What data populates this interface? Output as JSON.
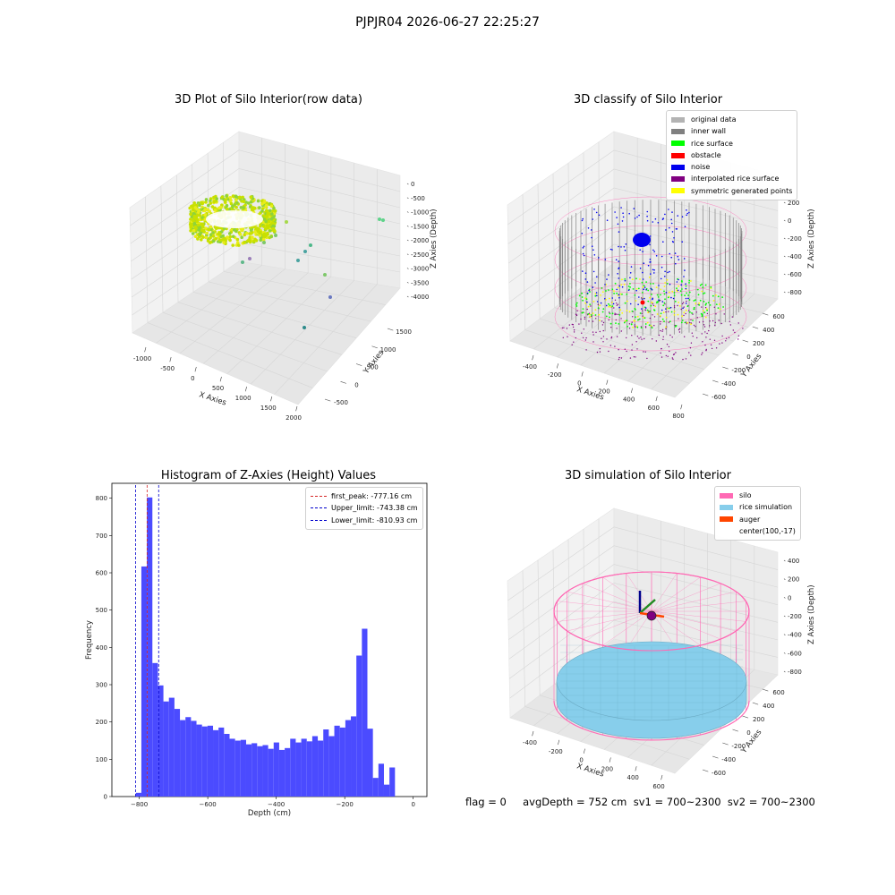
{
  "page_title": "PJPJR04 2026-06-27 22:25:27",
  "status_line": "flag = 0     avgDepth = 752 cm  sv1 = 700~2300  sv2 = 700~2300",
  "colors": {
    "hist_bar": "#4b4bff",
    "first_peak": "#d62728",
    "limits": "#0000cc",
    "original": "#b3b3b3",
    "inner_wall": "#808080",
    "rice_surface": "#00ff00",
    "obstacle": "#ff0000",
    "noise": "#0000ee",
    "interp": "#800080",
    "symmetric": "#ffff00",
    "silo": "#ff69b4",
    "rice_sim": "#87ceeb",
    "auger": "#ff4500"
  },
  "panels": {
    "raw": {
      "title": "3D Plot of Silo Interior(row data)",
      "x_label": "X Axies",
      "y_label": "Y Axies",
      "z_label": "Z Axies (Depth)",
      "x_ticks": [
        "-1000",
        "-500",
        "0",
        "500",
        "1000",
        "1500",
        "2000"
      ],
      "y_ticks": [
        "-500",
        "0",
        "500",
        "1000",
        "1500"
      ],
      "z_ticks": [
        "0",
        "-500",
        "-1000",
        "-1500",
        "-2000",
        "-2500",
        "-3000",
        "-3500",
        "-4000"
      ]
    },
    "classify": {
      "title": "3D classify of Silo Interior",
      "x_label": "X Axies",
      "y_label": "Y Axies",
      "z_label": "Z Axies (Depth)",
      "x_ticks": [
        "-400",
        "-200",
        "0",
        "200",
        "400",
        "600",
        "800"
      ],
      "y_ticks": [
        "-600",
        "-400",
        "-200",
        "0",
        "200",
        "400",
        "600"
      ],
      "z_ticks": [
        "200",
        "0",
        "-200",
        "-400",
        "-600",
        "-800"
      ],
      "legend": [
        {
          "label": "original data",
          "color": "#b3b3b3"
        },
        {
          "label": "inner wall",
          "color": "#808080"
        },
        {
          "label": "rice surface",
          "color": "#00ff00"
        },
        {
          "label": "obstacle",
          "color": "#ff0000"
        },
        {
          "label": "noise",
          "color": "#0000ee"
        },
        {
          "label": "interpolated rice surface",
          "color": "#800080"
        },
        {
          "label": "symmetric generated points",
          "color": "#ffff00"
        }
      ]
    },
    "simulation": {
      "title": "3D simulation of Silo Interior",
      "x_label": "X Axies",
      "y_label": "Y Axies",
      "z_label": "Z Axies (Depth)",
      "x_ticks": [
        "-400",
        "-200",
        "0",
        "200",
        "400",
        "600"
      ],
      "y_ticks": [
        "-600",
        "-400",
        "-200",
        "0",
        "200",
        "400",
        "600"
      ],
      "z_ticks": [
        "400",
        "200",
        "0",
        "-200",
        "-400",
        "-600",
        "-800"
      ],
      "legend": [
        {
          "label": "silo",
          "color": "#ff69b4"
        },
        {
          "label": "rice simulation",
          "color": "#87ceeb"
        },
        {
          "label": "auger",
          "color": "#ff4500"
        },
        {
          "label": "center(100,-17)",
          "color": ""
        }
      ]
    }
  },
  "chart_data": {
    "type": "bar",
    "title": "Histogram of Z-Axies (Height) Values",
    "xlabel": "Depth (cm)",
    "ylabel": "Frequency",
    "xlim": [
      -880,
      40
    ],
    "ylim": [
      0,
      840
    ],
    "x_ticks": [
      -800,
      -600,
      -400,
      -200,
      0
    ],
    "y_ticks": [
      0,
      100,
      200,
      300,
      400,
      500,
      600,
      700,
      800
    ],
    "bin_start": -810,
    "bin_width": 16.1,
    "values": [
      10,
      617,
      802,
      358,
      298,
      255,
      265,
      235,
      205,
      213,
      203,
      193,
      188,
      190,
      178,
      185,
      168,
      155,
      150,
      152,
      140,
      143,
      135,
      138,
      128,
      145,
      125,
      130,
      155,
      145,
      155,
      148,
      162,
      150,
      180,
      162,
      190,
      185,
      205,
      215,
      378,
      450,
      182,
      50,
      88,
      32,
      78
    ],
    "lines": [
      {
        "label": "first_peak: -777.16 cm",
        "x": -777.16,
        "color": "#d62728"
      },
      {
        "label": "Upper_limit: -743.38 cm",
        "x": -743.38,
        "color": "#0000cc"
      },
      {
        "label": "Lower_limit: -810.93 cm",
        "x": -810.93,
        "color": "#0000cc"
      }
    ],
    "legend_position": "top-right"
  }
}
